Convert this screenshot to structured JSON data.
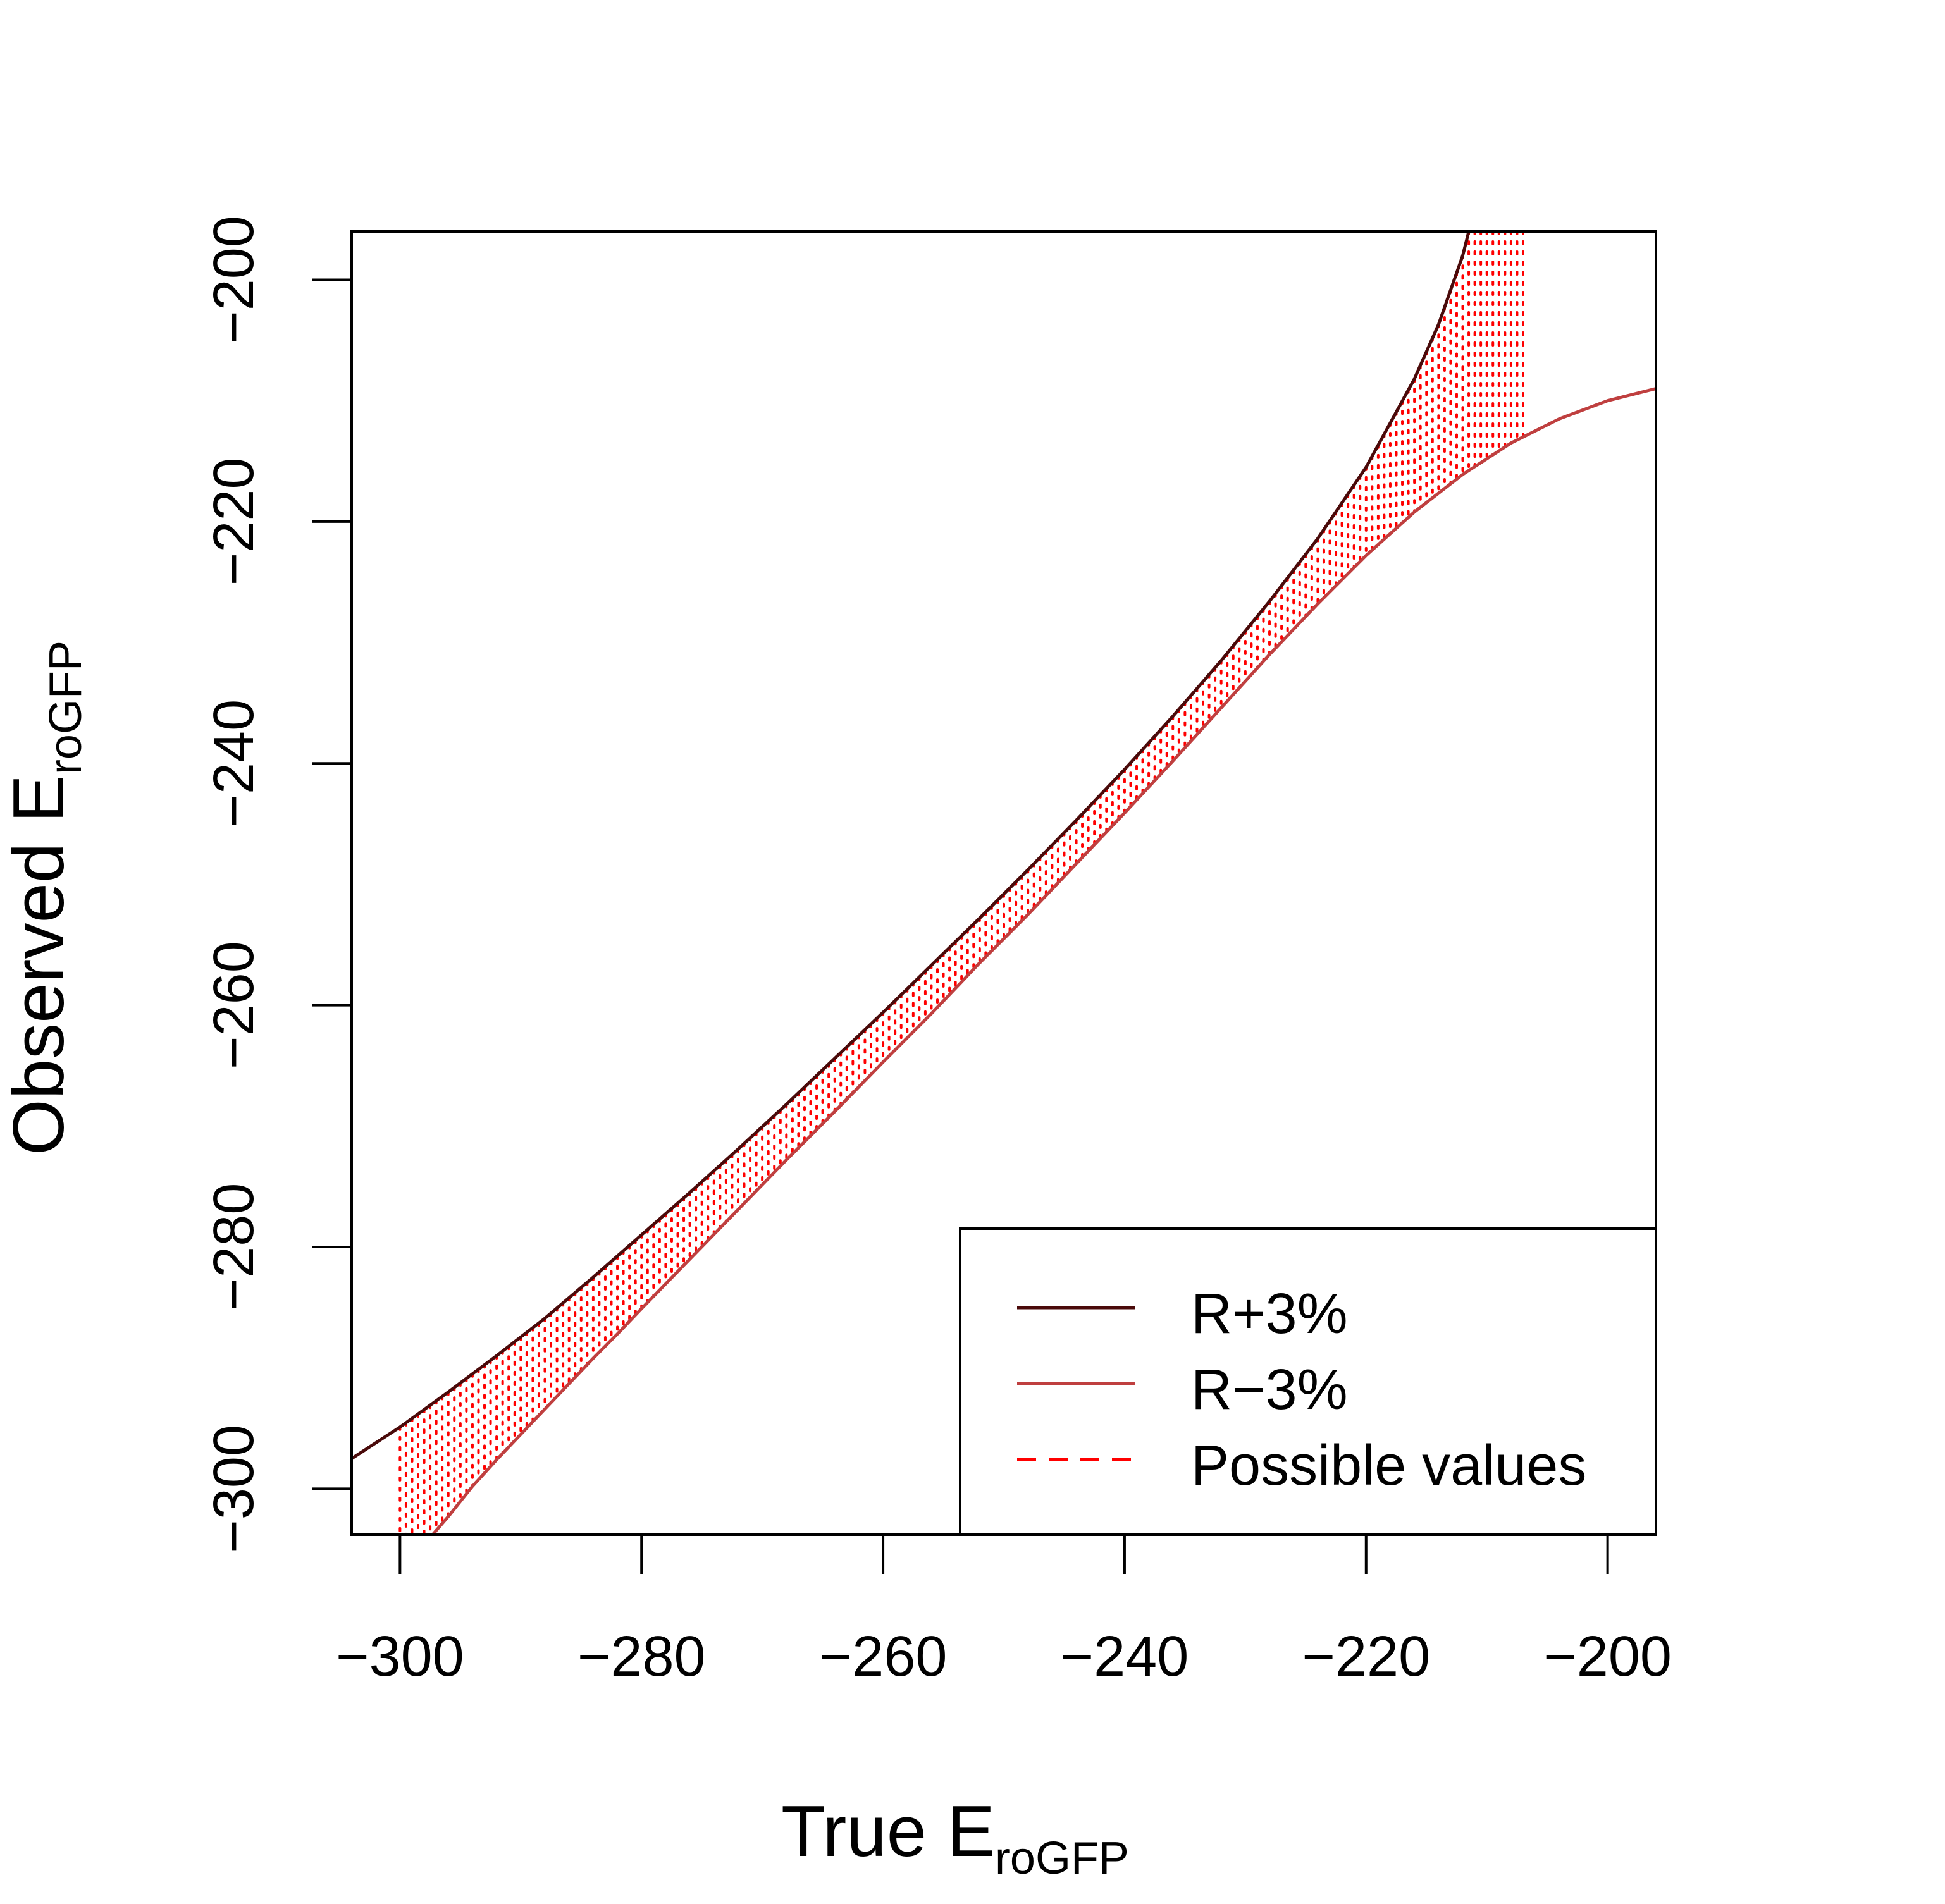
{
  "chart_data": {
    "type": "line",
    "title": "",
    "xlabel": {
      "main": "True E",
      "sub": "roGFP"
    },
    "ylabel": {
      "main": "Observed E",
      "sub": "roGFP"
    },
    "xlim": [
      -304,
      -196
    ],
    "ylim": [
      -303.8,
      -196
    ],
    "x_ticks": [
      -300,
      -280,
      -260,
      -240,
      -220,
      -200
    ],
    "y_ticks": [
      -300,
      -280,
      -260,
      -240,
      -220,
      -200
    ],
    "x_tick_labels": [
      "−300",
      "−280",
      "−260",
      "−240",
      "−220",
      "−200"
    ],
    "y_tick_labels": [
      "−300",
      "−280",
      "−260",
      "−240",
      "−220",
      "−200"
    ],
    "grid": false,
    "legend_position": "bottom-right",
    "series": [
      {
        "name": "R+3%",
        "color": "#4a0a0a",
        "style": "solid",
        "x": [
          -304,
          -300,
          -296,
          -292,
          -288,
          -284,
          -280,
          -276,
          -272,
          -268,
          -264,
          -260,
          -256,
          -252,
          -248,
          -244,
          -240,
          -236,
          -232,
          -228,
          -224,
          -220,
          -216,
          -214,
          -212,
          -211.5
        ],
        "y": [
          -297.5,
          -294.9,
          -292.0,
          -289.0,
          -285.9,
          -282.5,
          -279.0,
          -275.5,
          -271.9,
          -268.2,
          -264.4,
          -260.6,
          -256.7,
          -252.8,
          -248.8,
          -244.7,
          -240.5,
          -236.1,
          -231.5,
          -226.6,
          -221.4,
          -215.5,
          -208.2,
          -203.7,
          -198.0,
          -196.0
        ]
      },
      {
        "name": "R−3%",
        "color": "#bf3f3f",
        "style": "solid",
        "x": [
          -297.3,
          -296,
          -294,
          -292,
          -290,
          -288,
          -286,
          -284,
          -282,
          -280,
          -276,
          -272,
          -268,
          -264,
          -260,
          -256,
          -252,
          -248,
          -244,
          -240,
          -236,
          -232,
          -228,
          -224,
          -220,
          -216,
          -212,
          -208,
          -204,
          -200,
          -196
        ],
        "y": [
          -303.8,
          -302.3,
          -299.8,
          -297.6,
          -295.5,
          -293.4,
          -291.3,
          -289.2,
          -287.2,
          -285.1,
          -281.0,
          -276.9,
          -272.8,
          -268.8,
          -264.7,
          -260.7,
          -256.5,
          -252.5,
          -248.3,
          -244.1,
          -239.8,
          -235.4,
          -231.0,
          -226.8,
          -222.8,
          -219.2,
          -216.1,
          -213.5,
          -211.5,
          -210.0,
          -209.0
        ]
      },
      {
        "name": "Possible values",
        "color": "#ff0000",
        "style": "dashed",
        "x_range": [
          -300,
          -207
        ]
      }
    ]
  }
}
